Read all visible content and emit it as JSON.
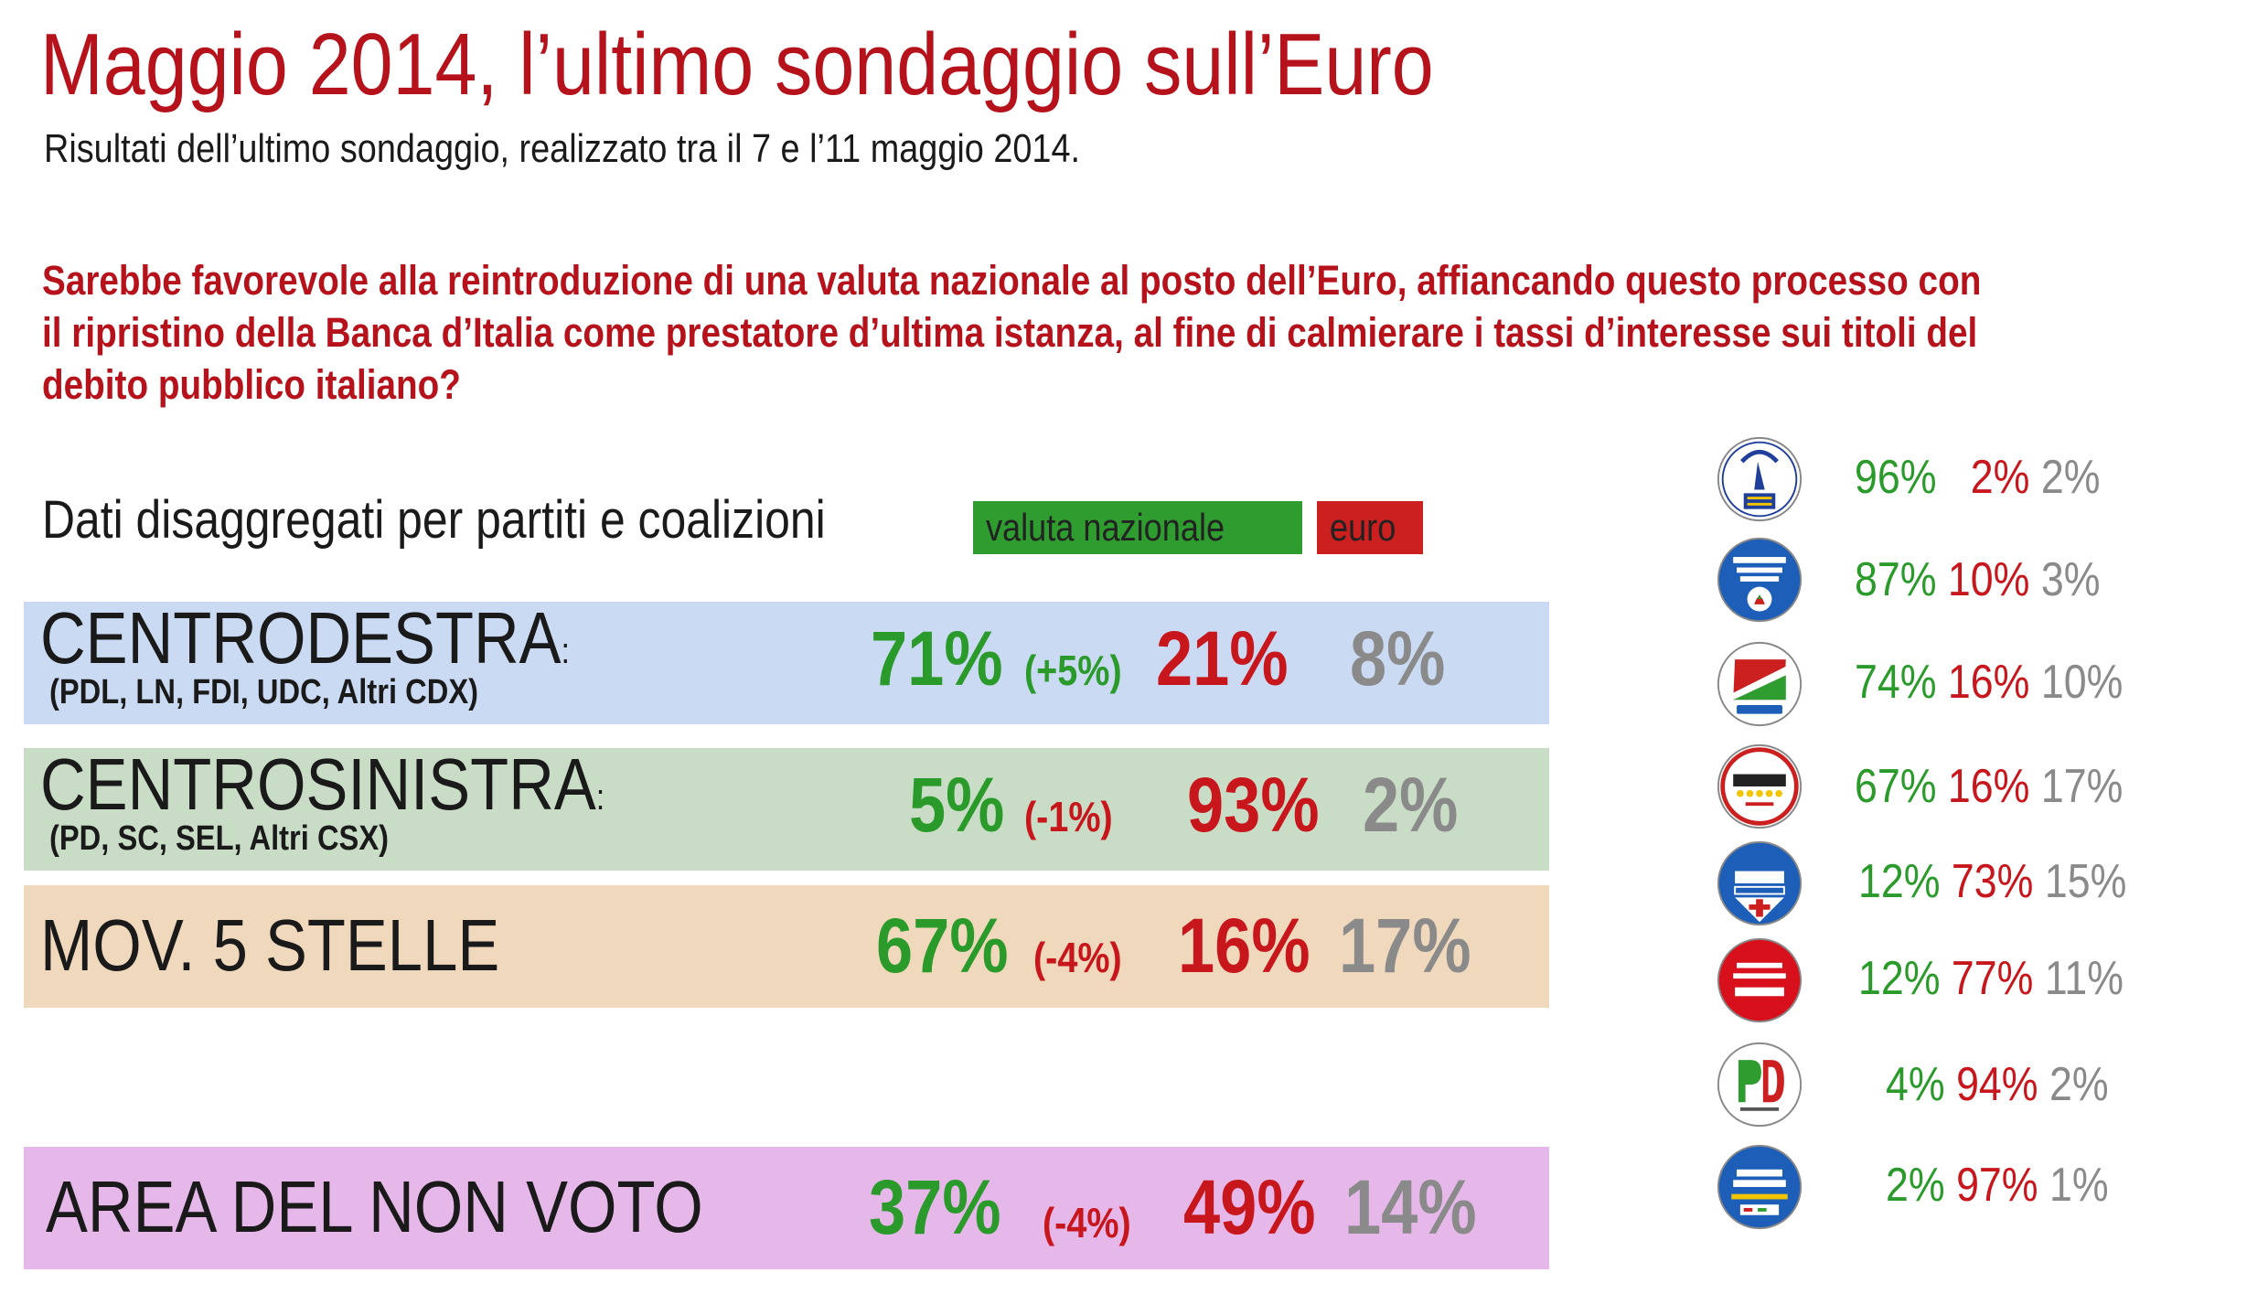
{
  "title": "Maggio 2014, l’ultimo sondaggio sull’Euro",
  "subtitle": "Risultati dell’ultimo sondaggio, realizzato tra il 7 e l’11 maggio 2014.",
  "question_lines": [
    "Sarebbe favorevole alla reintroduzione di una valuta nazionale al posto dell’Euro, affiancando questo processo con",
    "il ripristino della Banca d’Italia come prestatore d’ultima istanza, al fine di calmierare i tassi d’interesse sui titoli del",
    "debito pubblico italiano?"
  ],
  "breakdown_title": "Dati disaggregati per partiti e coalizioni",
  "legend": {
    "national": "valuta nazionale",
    "euro": "euro"
  },
  "colors": {
    "national": "#2a9a2a",
    "euro": "#c8161d",
    "other": "#8a8a8a",
    "title": "#b5121b"
  },
  "chart_data": {
    "type": "table",
    "columns": [
      "valuta nazionale",
      "euro",
      ""
    ],
    "coalitions": [
      {
        "label": "CENTRODESTRA",
        "colon": ":",
        "sub": "(PDL, LN, FDI, UDC, Altri CDX)",
        "national": "71%",
        "change": "(+5%)",
        "euro": "21%",
        "other": "8%",
        "national_value": 71,
        "euro_value": 21,
        "other_value": 8
      },
      {
        "label": "CENTROSINISTRA",
        "colon": ":",
        "sub": "(PD, SC, SEL, Altri CSX)",
        "national": "5%",
        "change": "(-1%)",
        "euro": "93%",
        "other": "2%",
        "national_value": 5,
        "euro_value": 93,
        "other_value": 2
      },
      {
        "label": "MOV. 5 STELLE",
        "colon": "",
        "sub": "",
        "national": "67%",
        "change": "(-4%)",
        "euro": "16%",
        "other": "17%",
        "national_value": 67,
        "euro_value": 16,
        "other_value": 17
      },
      {
        "label": "AREA DEL NON VOTO",
        "colon": "",
        "sub": "",
        "national": "37%",
        "change": "(-4%)",
        "euro": "49%",
        "other": "14%",
        "national_value": 37,
        "euro_value": 49,
        "other_value": 14
      }
    ],
    "parties": [
      {
        "logo": "lega-nord-logo",
        "logo_text": [
          "LEGA NORD",
          "BASTA €URO"
        ],
        "national": "96%",
        "euro": "2%",
        "other": "2%",
        "national_value": 96,
        "euro_value": 2,
        "other_value": 2
      },
      {
        "logo": "fratelli-ditalia-logo",
        "logo_text": [
          "MELONI",
          "FRATELLI",
          "d'ITALIA"
        ],
        "national": "87%",
        "euro": "10%",
        "other": "3%",
        "national_value": 87,
        "euro_value": 10,
        "other_value": 3
      },
      {
        "logo": "forza-italia-logo",
        "logo_text": [
          "FORZA",
          "ITALIA",
          "BERLUSCONI"
        ],
        "national": "74%",
        "euro": "16%",
        "other": "10%",
        "national_value": 74,
        "euro_value": 16,
        "other_value": 10
      },
      {
        "logo": "movimento-5-stelle-logo",
        "logo_text": [
          "MOVIMENTO"
        ],
        "national": "67%",
        "euro": "16%",
        "other": "17%",
        "national_value": 67,
        "euro_value": 16,
        "other_value": 17
      },
      {
        "logo": "ncd-logo",
        "logo_text": [
          "NCD",
          "ALFANO"
        ],
        "national": "12%",
        "euro": "73%",
        "other": "15%",
        "national_value": 12,
        "euro_value": 73,
        "other_value": 15
      },
      {
        "logo": "altra-europa-tsipras-logo",
        "logo_text": [
          "L'ALTRA",
          "EUROPA",
          "TSIPRAS"
        ],
        "national": "12%",
        "euro": "77%",
        "other": "11%",
        "national_value": 12,
        "euro_value": 77,
        "other_value": 11
      },
      {
        "logo": "pd-logo",
        "logo_text": [
          "PD"
        ],
        "national": "4%",
        "euro": "94%",
        "other": "2%",
        "national_value": 4,
        "euro_value": 94,
        "other_value": 2
      },
      {
        "logo": "scelta-europea-logo",
        "logo_text": [
          "SCELTA",
          "EUROPEA",
          "GUY VERHOFSTADT"
        ],
        "national": "2%",
        "euro": "97%",
        "other": "1%",
        "national_value": 2,
        "euro_value": 97,
        "other_value": 1
      }
    ]
  }
}
